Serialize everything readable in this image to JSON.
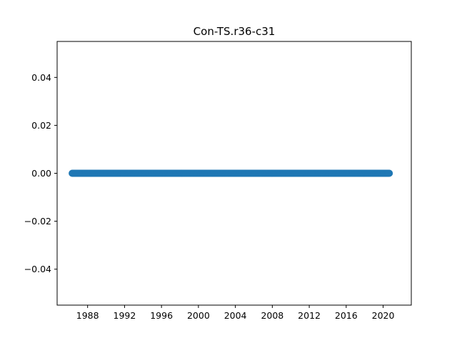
{
  "chart_data": {
    "type": "scatter",
    "title": "Con-TS.r36-c31",
    "xlabel": "",
    "ylabel": "",
    "x_start": "1986-05",
    "x_end": "2020-09",
    "x_step_months": 1,
    "y_value": 0.0,
    "xlim": [
      1984.7,
      2023.05
    ],
    "ylim": [
      -0.055,
      0.055
    ],
    "x_ticks": [
      "1988",
      "1992",
      "1996",
      "2000",
      "2004",
      "2008",
      "2012",
      "2016",
      "2020"
    ],
    "y_ticks": [
      "0.04",
      "0.02",
      "0.00",
      "−0.02",
      "−0.04"
    ],
    "y_tick_values": [
      0.04,
      0.02,
      0.0,
      -0.02,
      -0.04
    ],
    "marker_color": "#1f77b4",
    "grid": false,
    "legend": "none"
  }
}
